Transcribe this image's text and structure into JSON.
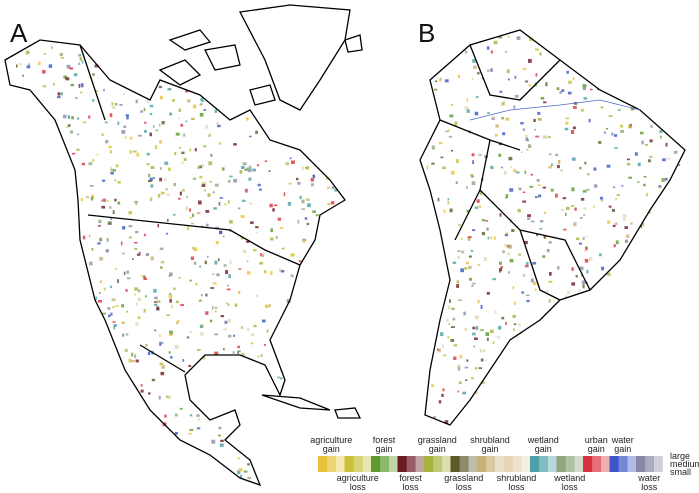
{
  "panels": [
    {
      "label": "A"
    },
    {
      "label": "B"
    }
  ],
  "legend": {
    "items": [
      {
        "label": "agriculture gain",
        "color": "#e8c23a"
      },
      {
        "label": "agriculture loss",
        "color": "#c9c23a"
      },
      {
        "label": "forest gain",
        "color": "#5e9a2e"
      },
      {
        "label": "forest loss",
        "color": "#6b1a24"
      },
      {
        "label": "grassland gain",
        "color": "#a7b23c"
      },
      {
        "label": "grassland loss",
        "color": "#5a5a2a"
      },
      {
        "label": "shrubland gain",
        "color": "#c8b27a"
      },
      {
        "label": "shrubland loss",
        "color": "#e6d7b4"
      },
      {
        "label": "wetland gain",
        "color": "#4aa0a8"
      },
      {
        "label": "wetland loss",
        "color": "#8fa67e"
      },
      {
        "label": "urban gain",
        "color": "#d9323c"
      },
      {
        "label": "water gain",
        "color": "#3a56c8"
      },
      {
        "label": "water loss",
        "color": "#8a88a8"
      }
    ],
    "sizes": [
      "large",
      "medium",
      "small"
    ]
  }
}
